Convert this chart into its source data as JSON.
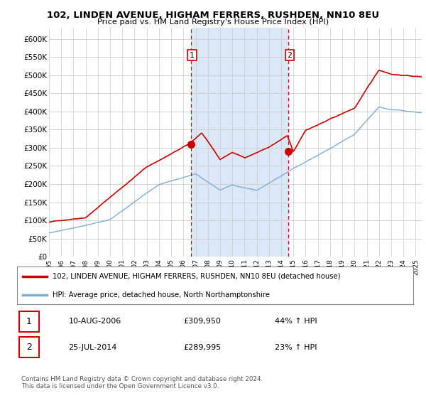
{
  "title_line1": "102, LINDEN AVENUE, HIGHAM FERRERS, RUSHDEN, NN10 8EU",
  "title_line2": "Price paid vs. HM Land Registry's House Price Index (HPI)",
  "bg_color": "#ffffff",
  "plot_bg_color": "#ffffff",
  "shade_color": "#dce8f8",
  "line1_color": "#cc0000",
  "line2_color": "#7bafd4",
  "vline_color": "#cc0000",
  "ylim": [
    0,
    630000
  ],
  "yticks": [
    0,
    50000,
    100000,
    150000,
    200000,
    250000,
    300000,
    350000,
    400000,
    450000,
    500000,
    550000,
    600000
  ],
  "ytick_labels": [
    "£0",
    "£50K",
    "£100K",
    "£150K",
    "£200K",
    "£250K",
    "£300K",
    "£350K",
    "£400K",
    "£450K",
    "£500K",
    "£550K",
    "£600K"
  ],
  "sale1_year": 2006.6,
  "sale1_price": 309950,
  "sale1_label": "1",
  "sale2_year": 2014.55,
  "sale2_price": 289995,
  "sale2_label": "2",
  "legend_line1": "102, LINDEN AVENUE, HIGHAM FERRERS, RUSHDEN, NN10 8EU (detached house)",
  "legend_line2": "HPI: Average price, detached house, North Northamptonshire",
  "table_row1": [
    "1",
    "10-AUG-2006",
    "£309,950",
    "44% ↑ HPI"
  ],
  "table_row2": [
    "2",
    "25-JUL-2014",
    "£289,995",
    "23% ↑ HPI"
  ],
  "footnote": "Contains HM Land Registry data © Crown copyright and database right 2024.\nThis data is licensed under the Open Government Licence v3.0.",
  "xmin": 1995,
  "xmax": 2025.5
}
